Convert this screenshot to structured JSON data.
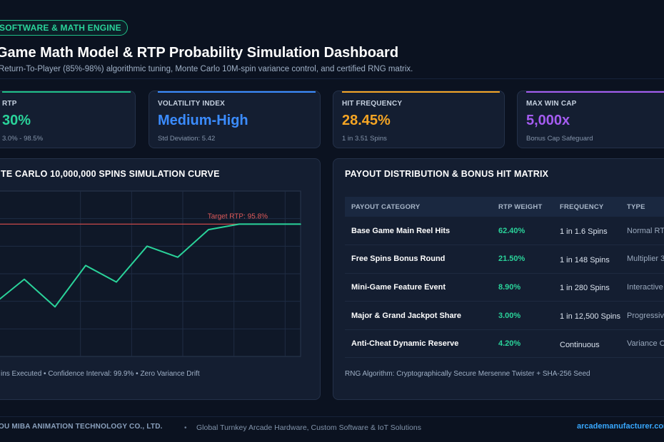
{
  "header": {
    "badge": "SOFTWARE & MATH ENGINE",
    "title": "Game Math Model & RTP Probability Simulation Dashboard",
    "subtitle": "Return-To-Player (85%-98%) algorithmic tuning, Monte Carlo 10M-spin variance control, and certified RNG matrix."
  },
  "kpis": [
    {
      "label": "RTP",
      "value": "30%",
      "note": "3.0% - 98.5%",
      "color": "#2ad39a"
    },
    {
      "label": "VOLATILITY INDEX",
      "value": "Medium-High",
      "note": "Std Deviation: 5.42",
      "color": "#3b8cff"
    },
    {
      "label": "HIT FREQUENCY",
      "value": "28.45%",
      "note": "1 in 3.51 Spins",
      "color": "#f5a524"
    },
    {
      "label": "MAX WIN CAP",
      "value": "5,000x",
      "note": "Bonus Cap Safeguard",
      "color": "#a45cf0"
    }
  ],
  "simulation": {
    "title": "TE CARLO 10,000,000 SPINS SIMULATION CURVE",
    "note": "ins Executed • Confidence Interval: 99.9% • Zero Variance Drift"
  },
  "chart_data": {
    "type": "line",
    "title": "TE CARLO 10,000,000 SPINS SIMULATION CURVE",
    "xlabel": "",
    "ylabel": "",
    "grid": true,
    "target_label": "Target RTP: 95.8%",
    "target": 95.8,
    "ylim": [
      91.0,
      97.0
    ],
    "x": [
      0,
      1,
      2,
      3,
      4,
      5,
      6,
      7,
      8,
      9,
      10
    ],
    "series": [
      {
        "values": [
          92.9,
          93.8,
          92.8,
          94.3,
          93.7,
          95.0,
          94.6,
          95.6,
          95.8,
          95.8,
          95.8
        ]
      }
    ],
    "line_color": "#2ad39a",
    "target_color": "#c94a4a"
  },
  "payout": {
    "title": "PAYOUT DISTRIBUTION & BONUS HIT MATRIX",
    "columns": [
      "PAYOUT CATEGORY",
      "RTP WEIGHT",
      "FREQUENCY",
      "TYPE"
    ],
    "rows": [
      {
        "category": "Base Game Main Reel Hits",
        "weight": "62.40%",
        "frequency": "1 in 1.6 Spins",
        "type": "Normal RTP"
      },
      {
        "category": "Free Spins Bonus Round",
        "weight": "21.50%",
        "frequency": "1 in 148 Spins",
        "type": "Multiplier 3"
      },
      {
        "category": "Mini-Game Feature Event",
        "weight": "8.90%",
        "frequency": "1 in 280 Spins",
        "type": "Interactive"
      },
      {
        "category": "Major & Grand Jackpot Share",
        "weight": "3.00%",
        "frequency": "1 in 12,500 Spins",
        "type": "Progressive"
      },
      {
        "category": "Anti-Cheat Dynamic Reserve",
        "weight": "4.20%",
        "frequency": "Continuous",
        "type": "Variance Cla"
      }
    ],
    "rng_note": "RNG Algorithm: Cryptographically Secure Mersenne Twister + SHA-256 Seed"
  },
  "footer": {
    "company": "OU MIBA ANIMATION TECHNOLOGY CO., LTD.",
    "separator": "•",
    "tagline": "Global Turnkey Arcade Hardware, Custom Software & IoT Solutions",
    "website": "arcademanufacturer.com"
  }
}
